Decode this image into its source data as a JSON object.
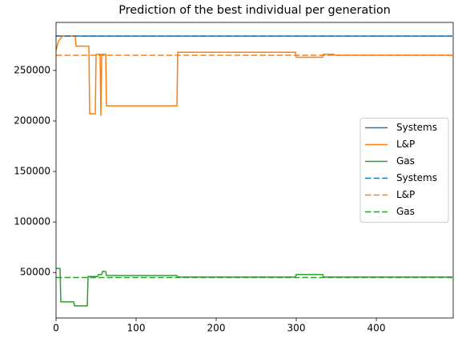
{
  "chart_data": {
    "type": "line",
    "title": "Prediction of the best individual per generation",
    "xlim": [
      0,
      496
    ],
    "xticks": [
      0,
      100,
      200,
      300,
      400
    ],
    "ylim": [
      5000,
      297500
    ],
    "yticks": [
      50000,
      100000,
      150000,
      200000,
      250000
    ],
    "legend": "center right",
    "series": [
      {
        "name": "Systems",
        "color": "#1f77b4",
        "linestyle": "solid",
        "x": [
          0,
          495
        ],
        "values": [
          284000,
          284000
        ]
      },
      {
        "name": "L&P",
        "color": "#ff7f0e",
        "linestyle": "solid",
        "x": [
          0,
          3,
          8,
          24,
          25,
          41,
          42,
          49,
          50,
          55,
          56,
          57,
          62,
          63,
          151,
          152,
          299,
          300,
          333,
          334,
          347,
          348,
          495
        ],
        "values": [
          270000,
          279000,
          284000,
          284000,
          274000,
          274000,
          207000,
          207000,
          266000,
          266000,
          205000,
          266000,
          266000,
          215000,
          215000,
          268000,
          268000,
          263000,
          263000,
          266000,
          266000,
          265000,
          265000
        ]
      },
      {
        "name": "Gas",
        "color": "#2ca02c",
        "linestyle": "solid",
        "x": [
          0,
          5,
          6,
          22,
          23,
          39,
          40,
          52,
          53,
          57,
          58,
          62,
          63,
          151,
          152,
          299,
          300,
          333,
          334,
          495
        ],
        "values": [
          54000,
          54000,
          21000,
          21000,
          17000,
          17000,
          46000,
          46000,
          48000,
          48000,
          51000,
          51000,
          47000,
          47000,
          45500,
          45500,
          48000,
          48000,
          45500,
          45500
        ]
      },
      {
        "name": "Systems",
        "color": "#1f77b4",
        "linestyle": "dashed",
        "x": [
          0,
          495
        ],
        "values": [
          284000,
          284000
        ]
      },
      {
        "name": "L&P",
        "color": "#ff7f0e",
        "linestyle": "dashed",
        "x": [
          0,
          495
        ],
        "values": [
          265000,
          265000
        ]
      },
      {
        "name": "Gas",
        "color": "#2ca02c",
        "linestyle": "dashed",
        "x": [
          0,
          495
        ],
        "values": [
          45000,
          45000
        ]
      }
    ]
  }
}
